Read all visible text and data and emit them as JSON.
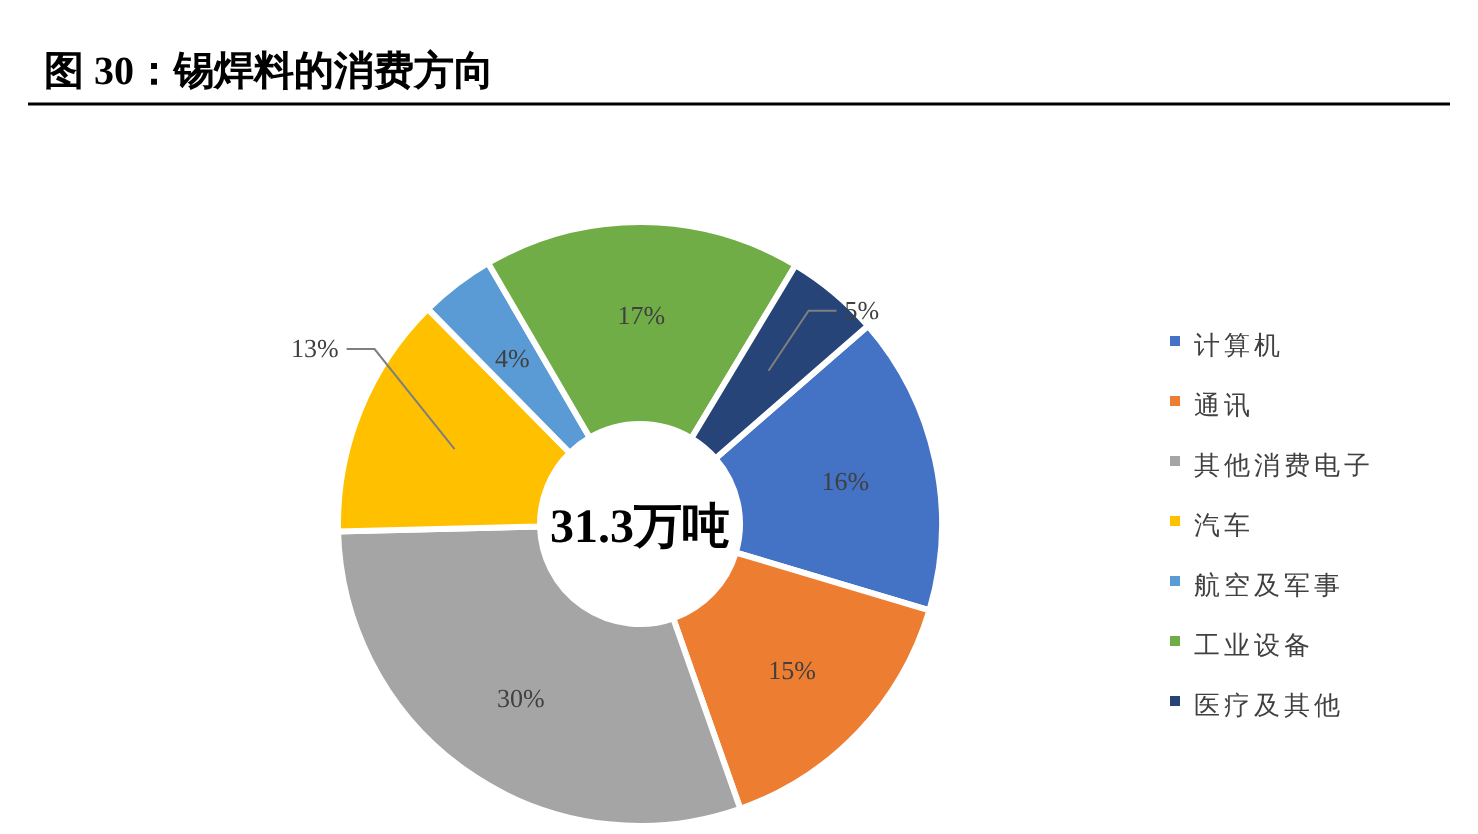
{
  "chart_data": {
    "type": "donut",
    "title": "图 30：锡焊料的消费方向",
    "categories": [
      "计算机",
      "通讯",
      "其他消费电子",
      "汽车",
      "航空及军事",
      "工业设备",
      "医疗及其他"
    ],
    "values": [
      16,
      15,
      30,
      13,
      4,
      17,
      5
    ],
    "colors": [
      "#4472c4",
      "#ed7d31",
      "#a5a5a5",
      "#ffc000",
      "#5b9bd5",
      "#70ad47",
      "#264478"
    ],
    "value_labels": [
      "16%",
      "15%",
      "30%",
      "13%",
      "4%",
      "17%",
      "5%"
    ],
    "annotations": [
      "31.3万吨"
    ],
    "legend": "right"
  }
}
